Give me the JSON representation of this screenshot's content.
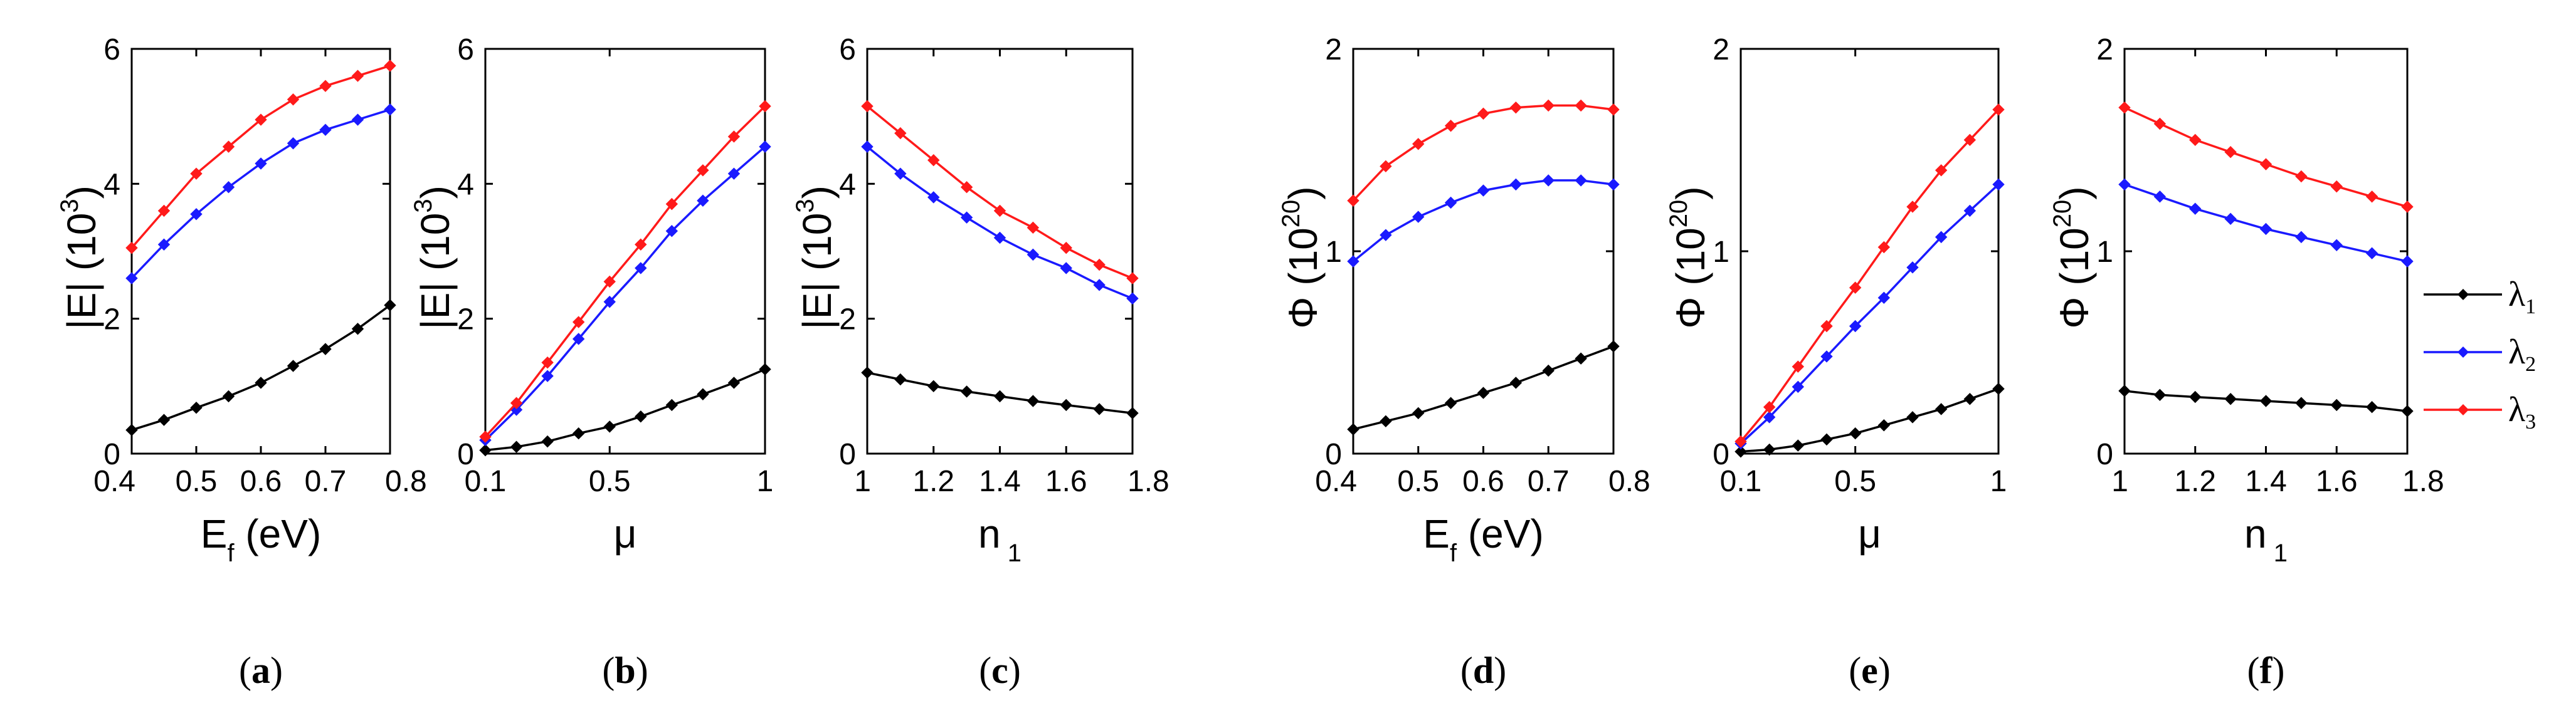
{
  "series_colors": {
    "lambda1": "#000000",
    "lambda2": "#1a1aff",
    "lambda3": "#ff1a1a"
  },
  "legend": [
    {
      "key": "lambda1",
      "label": "λ",
      "sub": "1"
    },
    {
      "key": "lambda2",
      "label": "λ",
      "sub": "2"
    },
    {
      "key": "lambda3",
      "label": "λ",
      "sub": "3"
    }
  ],
  "chart_data": [
    {
      "type": "line",
      "id": "a",
      "caption": "a",
      "ylabel": "|E|",
      "yunit_base": "10",
      "yunit_exp": "3",
      "xlabel": "E",
      "xlabel_sub": "f",
      "xlabel_unit": "(eV)",
      "xlim": [
        0.4,
        0.8
      ],
      "ylim": [
        0,
        6
      ],
      "yticks": [
        0,
        2,
        4,
        6
      ],
      "xticks": [
        0.4,
        0.5,
        0.6,
        0.7,
        0.8
      ],
      "xtick_labels": [
        "0.4",
        "0.5",
        "0.6",
        "0.7",
        "0.8"
      ],
      "series": [
        {
          "name": "λ1",
          "key": "lambda1",
          "x": [
            0.4,
            0.45,
            0.5,
            0.55,
            0.6,
            0.65,
            0.7,
            0.75,
            0.8
          ],
          "values": [
            0.35,
            0.5,
            0.68,
            0.85,
            1.05,
            1.3,
            1.55,
            1.85,
            2.2
          ]
        },
        {
          "name": "λ2",
          "key": "lambda2",
          "x": [
            0.4,
            0.45,
            0.5,
            0.55,
            0.6,
            0.65,
            0.7,
            0.75,
            0.8
          ],
          "values": [
            2.6,
            3.1,
            3.55,
            3.95,
            4.3,
            4.6,
            4.8,
            4.95,
            5.1
          ]
        },
        {
          "name": "λ3",
          "key": "lambda3",
          "x": [
            0.4,
            0.45,
            0.5,
            0.55,
            0.6,
            0.65,
            0.7,
            0.75,
            0.8
          ],
          "values": [
            3.05,
            3.6,
            4.15,
            4.55,
            4.95,
            5.25,
            5.45,
            5.6,
            5.75
          ]
        }
      ]
    },
    {
      "type": "line",
      "id": "b",
      "caption": "b",
      "ylabel": "|E|",
      "yunit_base": "10",
      "yunit_exp": "3",
      "xlabel": "μ",
      "xlabel_sub": "",
      "xlabel_unit": "",
      "xlim": [
        0.1,
        1.0
      ],
      "ylim": [
        0,
        6
      ],
      "yticks": [
        0,
        2,
        4,
        6
      ],
      "xticks": [
        0.1,
        0.5,
        1.0
      ],
      "xtick_labels": [
        "0.1",
        "0.5",
        "1"
      ],
      "series": [
        {
          "name": "λ1",
          "key": "lambda1",
          "x": [
            0.1,
            0.2,
            0.3,
            0.4,
            0.5,
            0.6,
            0.7,
            0.8,
            0.9,
            1.0
          ],
          "values": [
            0.05,
            0.1,
            0.18,
            0.3,
            0.4,
            0.55,
            0.72,
            0.88,
            1.05,
            1.25
          ]
        },
        {
          "name": "λ2",
          "key": "lambda2",
          "x": [
            0.1,
            0.2,
            0.3,
            0.4,
            0.5,
            0.6,
            0.7,
            0.8,
            0.9,
            1.0
          ],
          "values": [
            0.2,
            0.65,
            1.15,
            1.7,
            2.25,
            2.75,
            3.3,
            3.75,
            4.15,
            4.55
          ]
        },
        {
          "name": "λ3",
          "key": "lambda3",
          "x": [
            0.1,
            0.2,
            0.3,
            0.4,
            0.5,
            0.6,
            0.7,
            0.8,
            0.9,
            1.0
          ],
          "values": [
            0.25,
            0.75,
            1.35,
            1.95,
            2.55,
            3.1,
            3.7,
            4.2,
            4.7,
            5.15
          ]
        }
      ]
    },
    {
      "type": "line",
      "id": "c",
      "caption": "c",
      "ylabel": "|E|",
      "yunit_base": "10",
      "yunit_exp": "3",
      "xlabel": "n",
      "xlabel_sub": "1",
      "xlabel_unit": "",
      "xlim": [
        1.0,
        1.8
      ],
      "ylim": [
        0,
        6
      ],
      "yticks": [
        0,
        2,
        4,
        6
      ],
      "xticks": [
        1.0,
        1.2,
        1.4,
        1.6,
        1.8
      ],
      "xtick_labels": [
        "1",
        "1.2",
        "1.4",
        "1.6",
        "1.8"
      ],
      "series": [
        {
          "name": "λ1",
          "key": "lambda1",
          "x": [
            1.0,
            1.1,
            1.2,
            1.3,
            1.4,
            1.5,
            1.6,
            1.7,
            1.8
          ],
          "values": [
            1.2,
            1.1,
            1.0,
            0.92,
            0.85,
            0.78,
            0.72,
            0.66,
            0.6
          ]
        },
        {
          "name": "λ2",
          "key": "lambda2",
          "x": [
            1.0,
            1.1,
            1.2,
            1.3,
            1.4,
            1.5,
            1.6,
            1.7,
            1.8
          ],
          "values": [
            4.55,
            4.15,
            3.8,
            3.5,
            3.2,
            2.95,
            2.75,
            2.5,
            2.3
          ]
        },
        {
          "name": "λ3",
          "key": "lambda3",
          "x": [
            1.0,
            1.1,
            1.2,
            1.3,
            1.4,
            1.5,
            1.6,
            1.7,
            1.8
          ],
          "values": [
            5.15,
            4.75,
            4.35,
            3.95,
            3.6,
            3.35,
            3.05,
            2.8,
            2.6
          ]
        }
      ]
    },
    {
      "type": "line",
      "id": "d",
      "caption": "d",
      "ylabel": "Φ",
      "yunit_base": "10",
      "yunit_exp": "20",
      "xlabel": "E",
      "xlabel_sub": "f",
      "xlabel_unit": "(eV)",
      "xlim": [
        0.4,
        0.8
      ],
      "ylim": [
        0,
        2
      ],
      "yticks": [
        0,
        1,
        2
      ],
      "xticks": [
        0.4,
        0.5,
        0.6,
        0.7,
        0.8
      ],
      "xtick_labels": [
        "0.4",
        "0.5",
        "0.6",
        "0.7",
        "0.8"
      ],
      "series": [
        {
          "name": "λ1",
          "key": "lambda1",
          "x": [
            0.4,
            0.45,
            0.5,
            0.55,
            0.6,
            0.65,
            0.7,
            0.75,
            0.8
          ],
          "values": [
            0.12,
            0.16,
            0.2,
            0.25,
            0.3,
            0.35,
            0.41,
            0.47,
            0.53
          ]
        },
        {
          "name": "λ2",
          "key": "lambda2",
          "x": [
            0.4,
            0.45,
            0.5,
            0.55,
            0.6,
            0.65,
            0.7,
            0.75,
            0.8
          ],
          "values": [
            0.95,
            1.08,
            1.17,
            1.24,
            1.3,
            1.33,
            1.35,
            1.35,
            1.33
          ]
        },
        {
          "name": "λ3",
          "key": "lambda3",
          "x": [
            0.4,
            0.45,
            0.5,
            0.55,
            0.6,
            0.65,
            0.7,
            0.75,
            0.8
          ],
          "values": [
            1.25,
            1.42,
            1.53,
            1.62,
            1.68,
            1.71,
            1.72,
            1.72,
            1.7
          ]
        }
      ]
    },
    {
      "type": "line",
      "id": "e",
      "caption": "e",
      "ylabel": "Φ",
      "yunit_base": "10",
      "yunit_exp": "20",
      "xlabel": "μ",
      "xlabel_sub": "",
      "xlabel_unit": "",
      "xlim": [
        0.1,
        1.0
      ],
      "ylim": [
        0,
        2
      ],
      "yticks": [
        0,
        1,
        2
      ],
      "xticks": [
        0.1,
        0.5,
        1.0
      ],
      "xtick_labels": [
        "0.1",
        "0.5",
        "1"
      ],
      "series": [
        {
          "name": "λ1",
          "key": "lambda1",
          "x": [
            0.1,
            0.2,
            0.3,
            0.4,
            0.5,
            0.6,
            0.7,
            0.8,
            0.9,
            1.0
          ],
          "values": [
            0.01,
            0.02,
            0.04,
            0.07,
            0.1,
            0.14,
            0.18,
            0.22,
            0.27,
            0.32
          ]
        },
        {
          "name": "λ2",
          "key": "lambda2",
          "x": [
            0.1,
            0.2,
            0.3,
            0.4,
            0.5,
            0.6,
            0.7,
            0.8,
            0.9,
            1.0
          ],
          "values": [
            0.05,
            0.18,
            0.33,
            0.48,
            0.63,
            0.77,
            0.92,
            1.07,
            1.2,
            1.33
          ]
        },
        {
          "name": "λ3",
          "key": "lambda3",
          "x": [
            0.1,
            0.2,
            0.3,
            0.4,
            0.5,
            0.6,
            0.7,
            0.8,
            0.9,
            1.0
          ],
          "values": [
            0.06,
            0.23,
            0.43,
            0.63,
            0.82,
            1.02,
            1.22,
            1.4,
            1.55,
            1.7
          ]
        }
      ]
    },
    {
      "type": "line",
      "id": "f",
      "caption": "f",
      "ylabel": "Φ",
      "yunit_base": "10",
      "yunit_exp": "20",
      "xlabel": "n",
      "xlabel_sub": "1",
      "xlabel_unit": "",
      "xlim": [
        1.0,
        1.8
      ],
      "ylim": [
        0,
        2
      ],
      "yticks": [
        0,
        1,
        2
      ],
      "xticks": [
        1.0,
        1.2,
        1.4,
        1.6,
        1.8
      ],
      "xtick_labels": [
        "1",
        "1.2",
        "1.4",
        "1.6",
        "1.8"
      ],
      "series": [
        {
          "name": "λ1",
          "key": "lambda1",
          "x": [
            1.0,
            1.1,
            1.2,
            1.3,
            1.4,
            1.5,
            1.6,
            1.7,
            1.8
          ],
          "values": [
            0.31,
            0.29,
            0.28,
            0.27,
            0.26,
            0.25,
            0.24,
            0.23,
            0.21
          ]
        },
        {
          "name": "λ2",
          "key": "lambda2",
          "x": [
            1.0,
            1.1,
            1.2,
            1.3,
            1.4,
            1.5,
            1.6,
            1.7,
            1.8
          ],
          "values": [
            1.33,
            1.27,
            1.21,
            1.16,
            1.11,
            1.07,
            1.03,
            0.99,
            0.95
          ]
        },
        {
          "name": "λ3",
          "key": "lambda3",
          "x": [
            1.0,
            1.1,
            1.2,
            1.3,
            1.4,
            1.5,
            1.6,
            1.7,
            1.8
          ],
          "values": [
            1.71,
            1.63,
            1.55,
            1.49,
            1.43,
            1.37,
            1.32,
            1.27,
            1.22
          ]
        }
      ]
    }
  ]
}
